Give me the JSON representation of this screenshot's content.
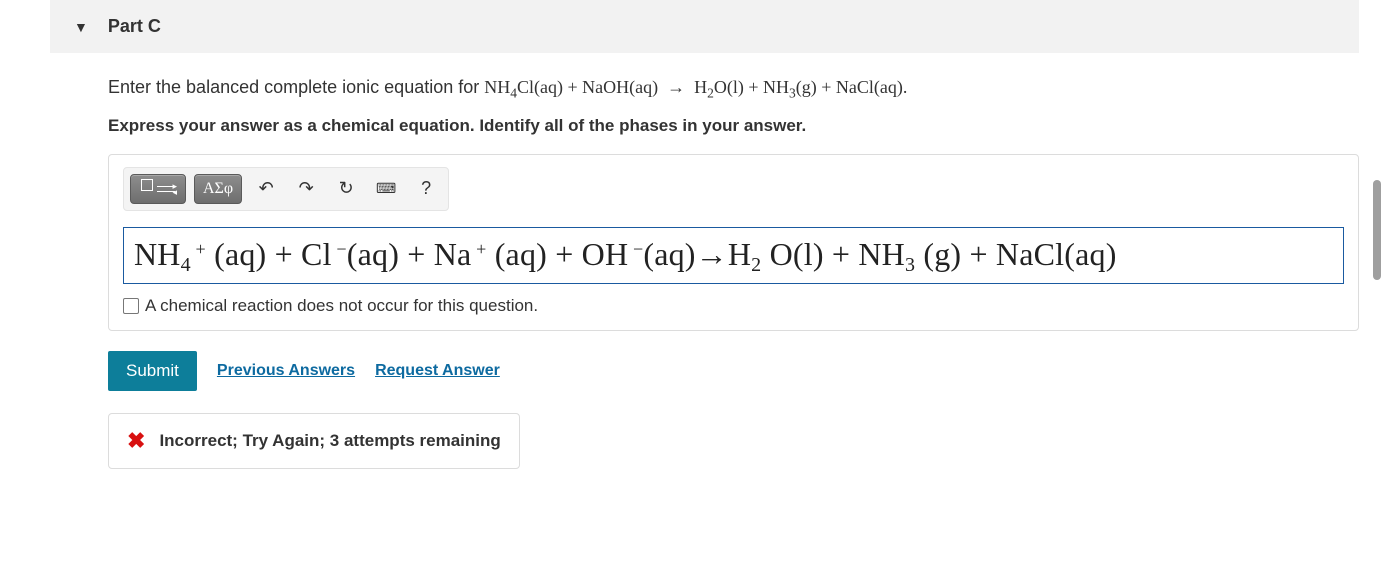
{
  "colors": {
    "header_bg": "#f2f2f2",
    "border": "#dcdcdc",
    "submit_bg": "#0d7e9a",
    "link": "#0d6aa0",
    "error": "#d81010",
    "input_border": "#1a5aa0",
    "tool_dark": "#6e6e6e"
  },
  "part": {
    "label": "Part C"
  },
  "prompt": {
    "lead": "Enter the balanced complete ionic equation for ",
    "equation_html": "NH<sub>4</sub>Cl(aq)&nbsp;+&nbsp;NaOH(aq)&nbsp;&nbsp;→&nbsp;&nbsp;H<sub>2</sub>O(l)&nbsp;+&nbsp;NH<sub>3</sub>(g)&nbsp;+&nbsp;NaCl(aq).",
    "instruction": "Express your answer as a chemical equation. Identify all of the phases in your answer."
  },
  "toolbar": {
    "template_btn": "template-palette",
    "greek_label": "ΑΣφ",
    "undo": "↶",
    "redo": "↷",
    "reset": "↻",
    "keyboard": "⌨",
    "help": "?"
  },
  "answer": {
    "equation_html": "NH<sub>4</sub><sup>&nbsp;+</sup> (aq) + Cl<sup>&nbsp;−</sup>(aq) + Na<sup>&nbsp;+</sup> (aq) + OH<sup>&nbsp;−</sup>(aq)→H<sub>2</sub> O(l) + NH<sub>3</sub> (g) + NaCl(aq)",
    "no_reaction_label": "A chemical reaction does not occur for this question.",
    "no_reaction_checked": false
  },
  "actions": {
    "submit": "Submit",
    "previous": "Previous Answers",
    "request": "Request Answer"
  },
  "feedback": {
    "icon": "✖",
    "text": "Incorrect; Try Again; 3 attempts remaining"
  }
}
